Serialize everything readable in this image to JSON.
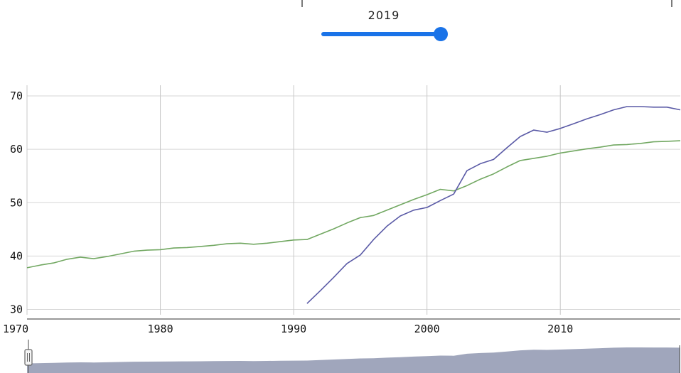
{
  "year_selector": {
    "label": "2019",
    "min": 1970,
    "max": 2019,
    "value": 2019,
    "color": "#1a73e8"
  },
  "chart_data": {
    "type": "line",
    "title": "",
    "xlabel": "",
    "ylabel": "",
    "xlim": [
      1970,
      2019
    ],
    "ylim": [
      29,
      72
    ],
    "grid": true,
    "x_ticks": [
      1970,
      1980,
      1990,
      2000,
      2010
    ],
    "y_ticks": [
      30,
      40,
      50,
      60,
      70
    ],
    "series": [
      {
        "color": "#72a862",
        "x": [
          1970,
          1971,
          1972,
          1973,
          1974,
          1975,
          1976,
          1977,
          1978,
          1979,
          1980,
          1981,
          1982,
          1983,
          1984,
          1985,
          1986,
          1987,
          1988,
          1989,
          1990,
          1991,
          1992,
          1993,
          1994,
          1995,
          1996,
          1997,
          1998,
          1999,
          2000,
          2001,
          2002,
          2003,
          2004,
          2005,
          2006,
          2007,
          2008,
          2009,
          2010,
          2011,
          2012,
          2013,
          2014,
          2015,
          2016,
          2017,
          2018,
          2019
        ],
        "y": [
          37.8,
          38.3,
          38.7,
          39.4,
          39.8,
          39.5,
          39.9,
          40.4,
          40.9,
          41.1,
          41.2,
          41.5,
          41.6,
          41.8,
          42.0,
          42.3,
          42.4,
          42.2,
          42.4,
          42.7,
          43.0,
          43.1,
          44.1,
          45.1,
          46.2,
          47.2,
          47.6,
          48.6,
          49.6,
          50.6,
          51.5,
          52.5,
          52.2,
          53.2,
          54.4,
          55.4,
          56.7,
          57.9,
          58.3,
          58.7,
          59.3,
          59.7,
          60.1,
          60.4,
          60.8,
          60.9,
          61.1,
          61.4,
          61.5,
          61.6
        ]
      },
      {
        "color": "#5a5aa6",
        "x": [
          1991,
          1992,
          1993,
          1994,
          1995,
          1996,
          1997,
          1998,
          1999,
          2000,
          2001,
          2002,
          2003,
          2004,
          2005,
          2006,
          2007,
          2008,
          2009,
          2010,
          2011,
          2012,
          2013,
          2014,
          2015,
          2016,
          2017,
          2018,
          2019
        ],
        "y": [
          31.1,
          33.5,
          36.0,
          38.6,
          40.2,
          43.1,
          45.6,
          47.5,
          48.6,
          49.1,
          50.4,
          51.6,
          56.0,
          57.3,
          58.1,
          60.3,
          62.4,
          63.6,
          63.2,
          63.9,
          64.8,
          65.7,
          66.5,
          67.4,
          68.0,
          68.0,
          67.9,
          67.9,
          67.4
        ]
      }
    ]
  },
  "navigator": {
    "fill_color": "#8f96b0",
    "handle_color": "#666666"
  }
}
